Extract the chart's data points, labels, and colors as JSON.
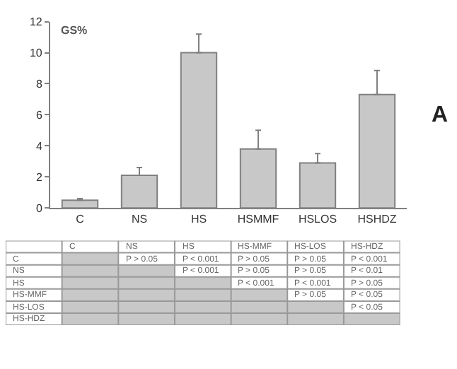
{
  "chart_data": [
    {
      "type": "bar",
      "ylabel": "GS%",
      "categories": [
        "C",
        "NS",
        "HS",
        "HSMMF",
        "HSLOS",
        "HSHDZ"
      ],
      "values": [
        0.5,
        2.1,
        10.0,
        3.8,
        2.9,
        7.3
      ],
      "color": "#c8c8c8",
      "errors": [
        [
          0.5,
          0.6
        ],
        [
          2.1,
          2.6
        ],
        [
          10.0,
          11.2
        ],
        [
          3.8,
          5.0
        ],
        [
          2.9,
          3.5
        ],
        [
          7.3,
          8.85
        ]
      ],
      "ylim": [
        0,
        12
      ],
      "yticks": [
        0,
        2,
        4,
        6,
        8,
        10,
        12
      ],
      "annotations": [
        "A"
      ]
    },
    {
      "type": "heatmap",
      "categories": [
        "C",
        "NS",
        "HS",
        "HS-MMF",
        "HS-LOS",
        "HS-HDZ"
      ],
      "y_categories": [
        "C",
        "NS",
        "HS",
        "HS-MMF",
        "HS-LOS",
        "HS-HDZ"
      ],
      "cells": [
        [
          null,
          null,
          null,
          null,
          null,
          null
        ],
        [
          null,
          null,
          null,
          null,
          null,
          null
        ],
        [
          null,
          null,
          null,
          null,
          null,
          null
        ],
        [
          null,
          null,
          null,
          null,
          null,
          null
        ],
        [
          null,
          null,
          null,
          null,
          null,
          null
        ],
        [
          null,
          null,
          null,
          null,
          null,
          null
        ]
      ],
      "cell_labels": [
        [
          null,
          "P > 0.05",
          "P < 0.001",
          "P > 0.05",
          "P > 0.05",
          "P < 0.001"
        ],
        [
          null,
          null,
          "P < 0.001",
          "P > 0.05",
          "P > 0.05",
          "P < 0.01"
        ],
        [
          null,
          null,
          null,
          "P < 0.001",
          "P < 0.001",
          "P > 0.05"
        ],
        [
          null,
          null,
          null,
          null,
          "P > 0.05",
          "P < 0.05"
        ],
        [
          null,
          null,
          null,
          null,
          null,
          "P < 0.05"
        ],
        [
          null,
          null,
          null,
          null,
          null,
          null
        ]
      ]
    }
  ]
}
